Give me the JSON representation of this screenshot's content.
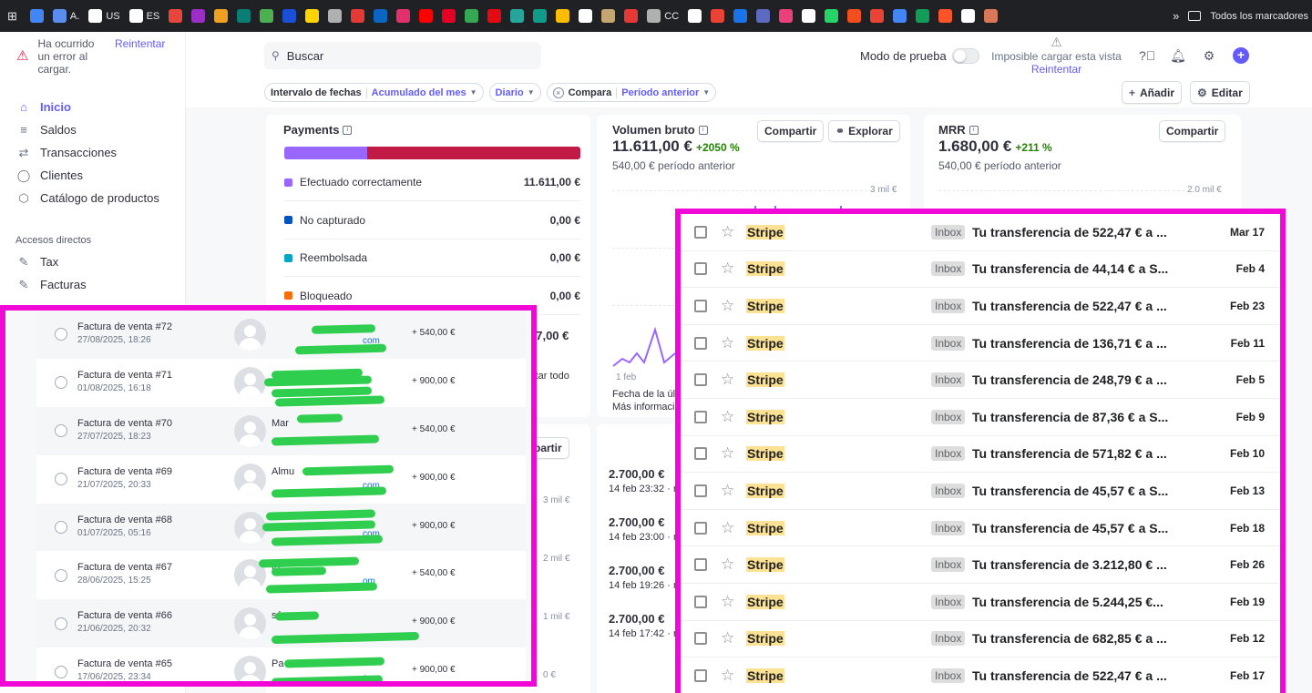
{
  "bookmarks": [
    {
      "icon": "chart-trend-icon",
      "color": "#4285f4",
      "label": ""
    },
    {
      "icon": "app-a-icon",
      "color": "#5b8def",
      "label": "A."
    },
    {
      "icon": "amazon-icon",
      "color": "#ffffff",
      "label": "US"
    },
    {
      "icon": "amazon-icon",
      "color": "#ffffff",
      "label": "ES"
    },
    {
      "icon": "heart-icon",
      "color": "#e8453c",
      "label": ""
    },
    {
      "icon": "w-letter-icon",
      "color": "#9b2ec7",
      "label": ""
    },
    {
      "icon": "book-icon",
      "color": "#f0a020",
      "label": ""
    },
    {
      "icon": "dot-icon",
      "color": "#0a7e74",
      "label": ""
    },
    {
      "icon": "leaf-icon",
      "color": "#4caf50",
      "label": ""
    },
    {
      "icon": "n-logo-icon",
      "color": "#1a4fd8",
      "label": ""
    },
    {
      "icon": "bolt-icon",
      "color": "#ffd400",
      "label": ""
    },
    {
      "icon": "ae-icon",
      "color": "#b0b0b0",
      "label": ""
    },
    {
      "icon": "glasses-icon",
      "color": "#e53935",
      "label": ""
    },
    {
      "icon": "linkedin-icon",
      "color": "#0a66c2",
      "label": ""
    },
    {
      "icon": "instagram-icon",
      "color": "#e1306c",
      "label": ""
    },
    {
      "icon": "youtube-icon",
      "color": "#ff0000",
      "label": ""
    },
    {
      "icon": "pinterest-icon",
      "color": "#e60023",
      "label": ""
    },
    {
      "icon": "download-icon",
      "color": "#34a853",
      "label": ""
    },
    {
      "icon": "netflix-icon",
      "color": "#e50914",
      "label": ""
    },
    {
      "icon": "play-icon",
      "color": "#26a69a",
      "label": ""
    },
    {
      "icon": "v-logo-icon",
      "color": "#0f9d8a",
      "label": ""
    },
    {
      "icon": "drive-icon",
      "color": "#fbbc04",
      "label": ""
    },
    {
      "icon": "tray-icon",
      "color": "#ffffff",
      "label": ""
    },
    {
      "icon": "badge-icon",
      "color": "#c5a572",
      "label": ""
    },
    {
      "icon": "square-icon",
      "color": "#e53935",
      "label": ""
    },
    {
      "icon": "cc-icon",
      "color": "#b0b0b0",
      "label": "CC"
    },
    {
      "icon": "columns-icon",
      "color": "#ffffff",
      "label": ""
    },
    {
      "icon": "gmail-icon",
      "color": "#ea4335",
      "label": ""
    },
    {
      "icon": "s-circle-icon",
      "color": "#1a73e8",
      "label": ""
    },
    {
      "icon": "gear-blue-icon",
      "color": "#5c6bc0",
      "label": ""
    },
    {
      "icon": "hand-icon",
      "color": "#ec407a",
      "label": ""
    },
    {
      "icon": "sk-icon",
      "color": "#ffffff",
      "label": ""
    },
    {
      "icon": "whatsapp-icon",
      "color": "#25d366",
      "label": ""
    },
    {
      "icon": "figma-icon",
      "color": "#f24e1e",
      "label": ""
    },
    {
      "icon": "gmail-icon",
      "color": "#ea4335",
      "label": ""
    },
    {
      "icon": "calendar-icon",
      "color": "#4285f4",
      "label": ""
    },
    {
      "icon": "drive-icon",
      "color": "#0f9d58",
      "label": ""
    },
    {
      "icon": "brave-icon",
      "color": "#fb542b",
      "label": ""
    },
    {
      "icon": "openai-icon",
      "color": "#ffffff",
      "label": ""
    },
    {
      "icon": "sparkle-icon",
      "color": "#d97757",
      "label": ""
    }
  ],
  "bookmarks_more": "»",
  "bookmarks_folder": "Todos los marcadores",
  "sidebar": {
    "error_message": "Ha ocurrido un error al cargar.",
    "error_retry": "Reintentar",
    "nav": [
      {
        "label": "Inicio",
        "icon": "home-icon",
        "glyph": "⌂",
        "active": true
      },
      {
        "label": "Saldos",
        "icon": "balance-icon",
        "glyph": "≡",
        "active": false
      },
      {
        "label": "Transacciones",
        "icon": "transfer-icon",
        "glyph": "⇄",
        "active": false
      },
      {
        "label": "Clientes",
        "icon": "person-icon",
        "glyph": "◯",
        "active": false
      },
      {
        "label": "Catálogo de productos",
        "icon": "box-icon",
        "glyph": "⬡",
        "active": false
      }
    ],
    "shortcuts_title": "Accesos directos",
    "shortcuts": [
      {
        "label": "Tax",
        "icon": "pin-icon",
        "glyph": "✎"
      },
      {
        "label": "Facturas",
        "icon": "pin-icon",
        "glyph": "✎"
      }
    ]
  },
  "header": {
    "search_placeholder": "Buscar",
    "test_mode": "Modo de prueba",
    "view_error": "Imposible cargar esta vista",
    "view_retry": "Reintentar"
  },
  "filters": [
    {
      "key": "Intervalo de fechas",
      "value": "Acumulado del mes",
      "closable": false
    },
    {
      "key": "",
      "value": "Diario",
      "closable": false
    },
    {
      "key": "Compara",
      "value": "Período anterior",
      "closable": true
    }
  ],
  "actions": {
    "add": "Añadir",
    "edit": "Editar"
  },
  "payments": {
    "title": "Payments",
    "rows": [
      {
        "label": "Efectuado correctamente",
        "value": "11.611,00 €",
        "color": "#9966ff"
      },
      {
        "label": "No capturado",
        "value": "0,00 €",
        "color": "#0055bc"
      },
      {
        "label": "Reembolsada",
        "value": "0,00 €",
        "color": "#06a6c4"
      },
      {
        "label": "Bloqueado",
        "value": "0,00 €",
        "color": "#f56e0a"
      }
    ],
    "partial_total": "47,00 €",
    "partial_hide": "ultar todo"
  },
  "gross_volume": {
    "title": "Volumen bruto",
    "value": "11.611,00 €",
    "delta": "+2050 %",
    "previous": "540,00 € período anterior",
    "share": "Compartir",
    "explore": "Explorar",
    "axis_top": "3 mil €",
    "x_start": "1 feb",
    "footer1": "Fecha de la últ",
    "footer2": "Más informació"
  },
  "mrr": {
    "title": "MRR",
    "value": "1.680,00 €",
    "delta": "+211 %",
    "previous": "540,00 € período anterior",
    "share": "Compartir",
    "axis_top": "2.0 mil €"
  },
  "lower_chart": {
    "share_partial": "partir",
    "axis": [
      "3 mil €",
      "2 mil €",
      "1 mil €",
      "0 €"
    ]
  },
  "recent_payments": [
    {
      "amount": "2.700,00 €",
      "time": "14 feb 23:32 · r"
    },
    {
      "amount": "2.700,00 €",
      "time": "14 feb 23:00 · r"
    },
    {
      "amount": "2.700,00 €",
      "time": "14 feb 19:26 · r"
    },
    {
      "amount": "2.700,00 €",
      "time": "14 feb 17:42 · r"
    }
  ],
  "invoices": [
    {
      "title": "Factura de venta #72",
      "date": "27/08/2025, 18:26",
      "amount": "+ 540,00 €",
      "name": "",
      "email": "com"
    },
    {
      "title": "Factura de venta #71",
      "date": "01/08/2025, 16:18",
      "amount": "+ 900,00 €",
      "name": "",
      "email": ""
    },
    {
      "title": "Factura de venta #70",
      "date": "27/07/2025, 18:23",
      "amount": "+ 540,00 €",
      "name": "Mar",
      "email": ""
    },
    {
      "title": "Factura de venta #69",
      "date": "21/07/2025, 20:33",
      "amount": "+ 900,00 €",
      "name": "Almu",
      "email": "com"
    },
    {
      "title": "Factura de venta #68",
      "date": "01/07/2025, 05:16",
      "amount": "+ 900,00 €",
      "name": "",
      "email": "com"
    },
    {
      "title": "Factura de venta #67",
      "date": "28/06/2025, 15:25",
      "amount": "+ 540,00 €",
      "name": "to",
      "email": "om"
    },
    {
      "title": "Factura de venta #66",
      "date": "21/06/2025, 20:32",
      "amount": "+ 900,00 €",
      "name": "sáez",
      "email": ""
    },
    {
      "title": "Factura de venta #65",
      "date": "17/06/2025, 23:34",
      "amount": "+ 900,00 €",
      "name": "Pa",
      "email": "a."
    }
  ],
  "emails": [
    {
      "sender": "Stripe",
      "label": "Inbox",
      "subject": "Tu transferencia de 522,47 € a ...",
      "date": "Mar 17"
    },
    {
      "sender": "Stripe",
      "label": "Inbox",
      "subject": "Tu transferencia de 44,14 € a S...",
      "date": "Feb 4"
    },
    {
      "sender": "Stripe",
      "label": "Inbox",
      "subject": "Tu transferencia de 522,47 € a ...",
      "date": "Feb 23"
    },
    {
      "sender": "Stripe",
      "label": "Inbox",
      "subject": "Tu transferencia de 136,71 € a ...",
      "date": "Feb 11"
    },
    {
      "sender": "Stripe",
      "label": "Inbox",
      "subject": "Tu transferencia de 248,79 € a ...",
      "date": "Feb 5"
    },
    {
      "sender": "Stripe",
      "label": "Inbox",
      "subject": "Tu transferencia de 87,36 € a S...",
      "date": "Feb 9"
    },
    {
      "sender": "Stripe",
      "label": "Inbox",
      "subject": "Tu transferencia de 571,82 € a ...",
      "date": "Feb 10"
    },
    {
      "sender": "Stripe",
      "label": "Inbox",
      "subject": "Tu transferencia de 45,57 € a S...",
      "date": "Feb 13"
    },
    {
      "sender": "Stripe",
      "label": "Inbox",
      "subject": "Tu transferencia de 45,57 € a S...",
      "date": "Feb 18"
    },
    {
      "sender": "Stripe",
      "label": "Inbox",
      "subject": "Tu transferencia de 3.212,80 € ...",
      "date": "Feb 26"
    },
    {
      "sender": "Stripe",
      "label": "Inbox",
      "subject": "Tu transferencia de 5.244,25 €...",
      "date": "Feb 19"
    },
    {
      "sender": "Stripe",
      "label": "Inbox",
      "subject": "Tu transferencia de 682,85 € a ...",
      "date": "Feb 12"
    },
    {
      "sender": "Stripe",
      "label": "Inbox",
      "subject": "Tu transferencia de 522,47 € a ...",
      "date": "Feb 17"
    }
  ]
}
